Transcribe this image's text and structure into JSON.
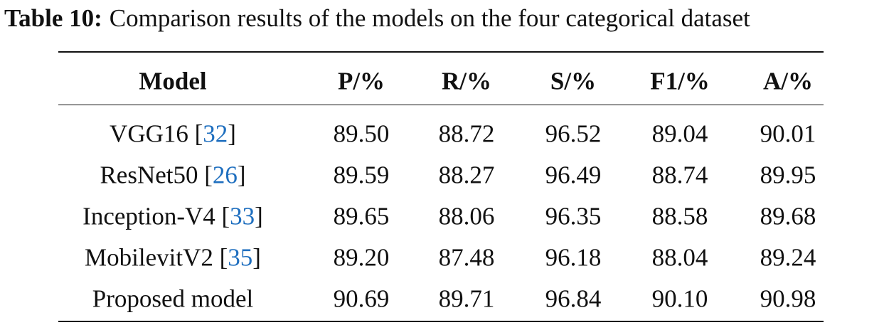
{
  "caption": {
    "label": "Table 10:",
    "text": "Comparison results of the models on the four categorical dataset"
  },
  "table": {
    "header": [
      "Model",
      "P/%",
      "R/%",
      "S/%",
      "F1/%",
      "A/%"
    ],
    "rows": [
      {
        "model": [
          "VGG16 [",
          "32",
          "]"
        ],
        "values": [
          "89.50",
          "88.72",
          "96.52",
          "89.04",
          "90.01"
        ]
      },
      {
        "model": [
          "ResNet50 [",
          "26",
          "]"
        ],
        "values": [
          "89.59",
          "88.27",
          "96.49",
          "88.74",
          "89.95"
        ]
      },
      {
        "model": [
          "Inception-V4 [",
          "33",
          "]"
        ],
        "values": [
          "89.65",
          "88.06",
          "96.35",
          "88.58",
          "89.68"
        ]
      },
      {
        "model": [
          "MobilevitV2 [",
          "35",
          "]"
        ],
        "values": [
          "89.20",
          "87.48",
          "96.18",
          "88.04",
          "89.24"
        ]
      },
      {
        "model": [
          "Proposed model"
        ],
        "values": [
          "90.69",
          "89.71",
          "96.84",
          "90.10",
          "90.98"
        ]
      }
    ]
  }
}
